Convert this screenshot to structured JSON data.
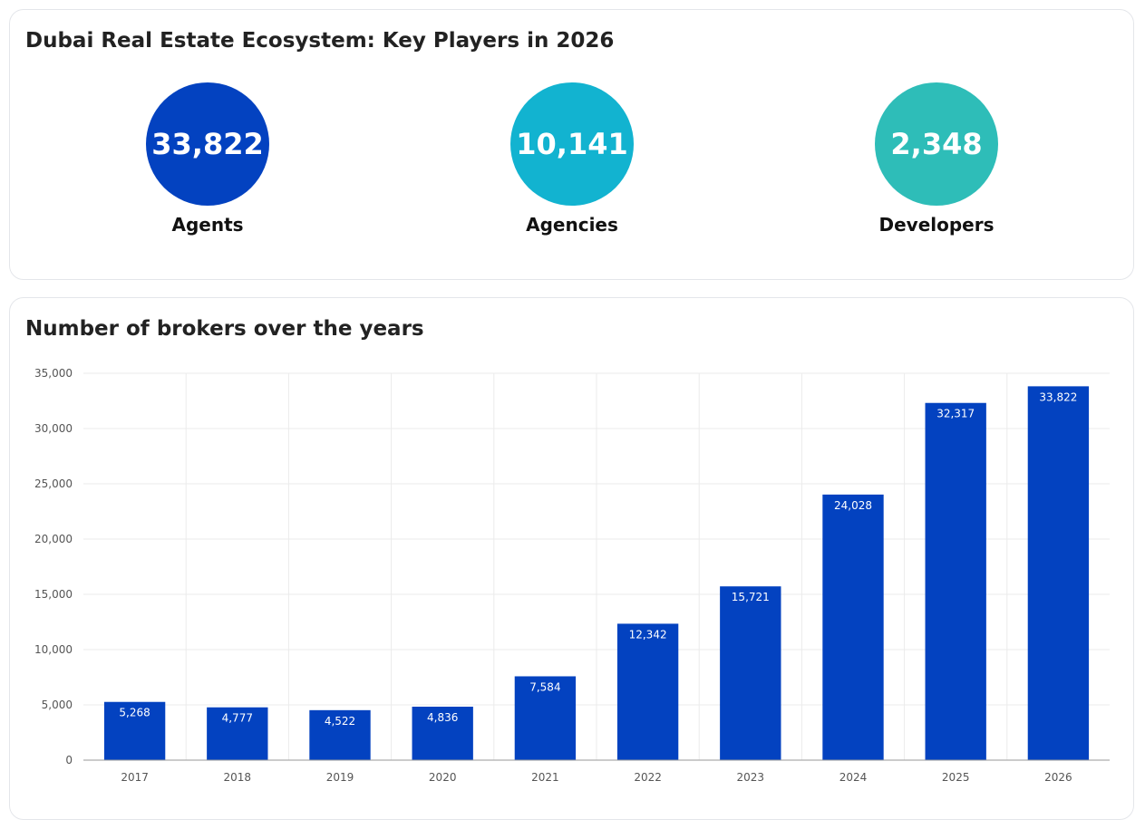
{
  "players_card": {
    "title": "Dubai Real Estate Ecosystem: Key Players in 2026",
    "stats": [
      {
        "value": "33,822",
        "label": "Agents",
        "color": "#0342c0"
      },
      {
        "value": "10,141",
        "label": "Agencies",
        "color": "#12b3d0"
      },
      {
        "value": "2,348",
        "label": "Developers",
        "color": "#2ebdb8"
      }
    ]
  },
  "brokers_card": {
    "title": "Number of brokers over the years"
  },
  "chart_data": {
    "type": "bar",
    "title": "Number of brokers over the years",
    "categories": [
      "2017",
      "2018",
      "2019",
      "2020",
      "2021",
      "2022",
      "2023",
      "2024",
      "2025",
      "2026"
    ],
    "values": [
      5268,
      4777,
      4522,
      4836,
      7584,
      12342,
      15721,
      24028,
      32317,
      33822
    ],
    "value_labels": [
      "5,268",
      "4,777",
      "4,522",
      "4,836",
      "7,584",
      "12,342",
      "15,721",
      "24,028",
      "32,317",
      "33,822"
    ],
    "ylim": [
      0,
      35000
    ],
    "yticks": [
      0,
      5000,
      10000,
      15000,
      20000,
      25000,
      30000,
      35000
    ],
    "ytick_labels": [
      "0",
      "5,000",
      "10,000",
      "15,000",
      "20,000",
      "25,000",
      "30,000",
      "35,000"
    ],
    "xlabel": "",
    "ylabel": "",
    "grid": true,
    "bar_color": "#0342c0"
  }
}
